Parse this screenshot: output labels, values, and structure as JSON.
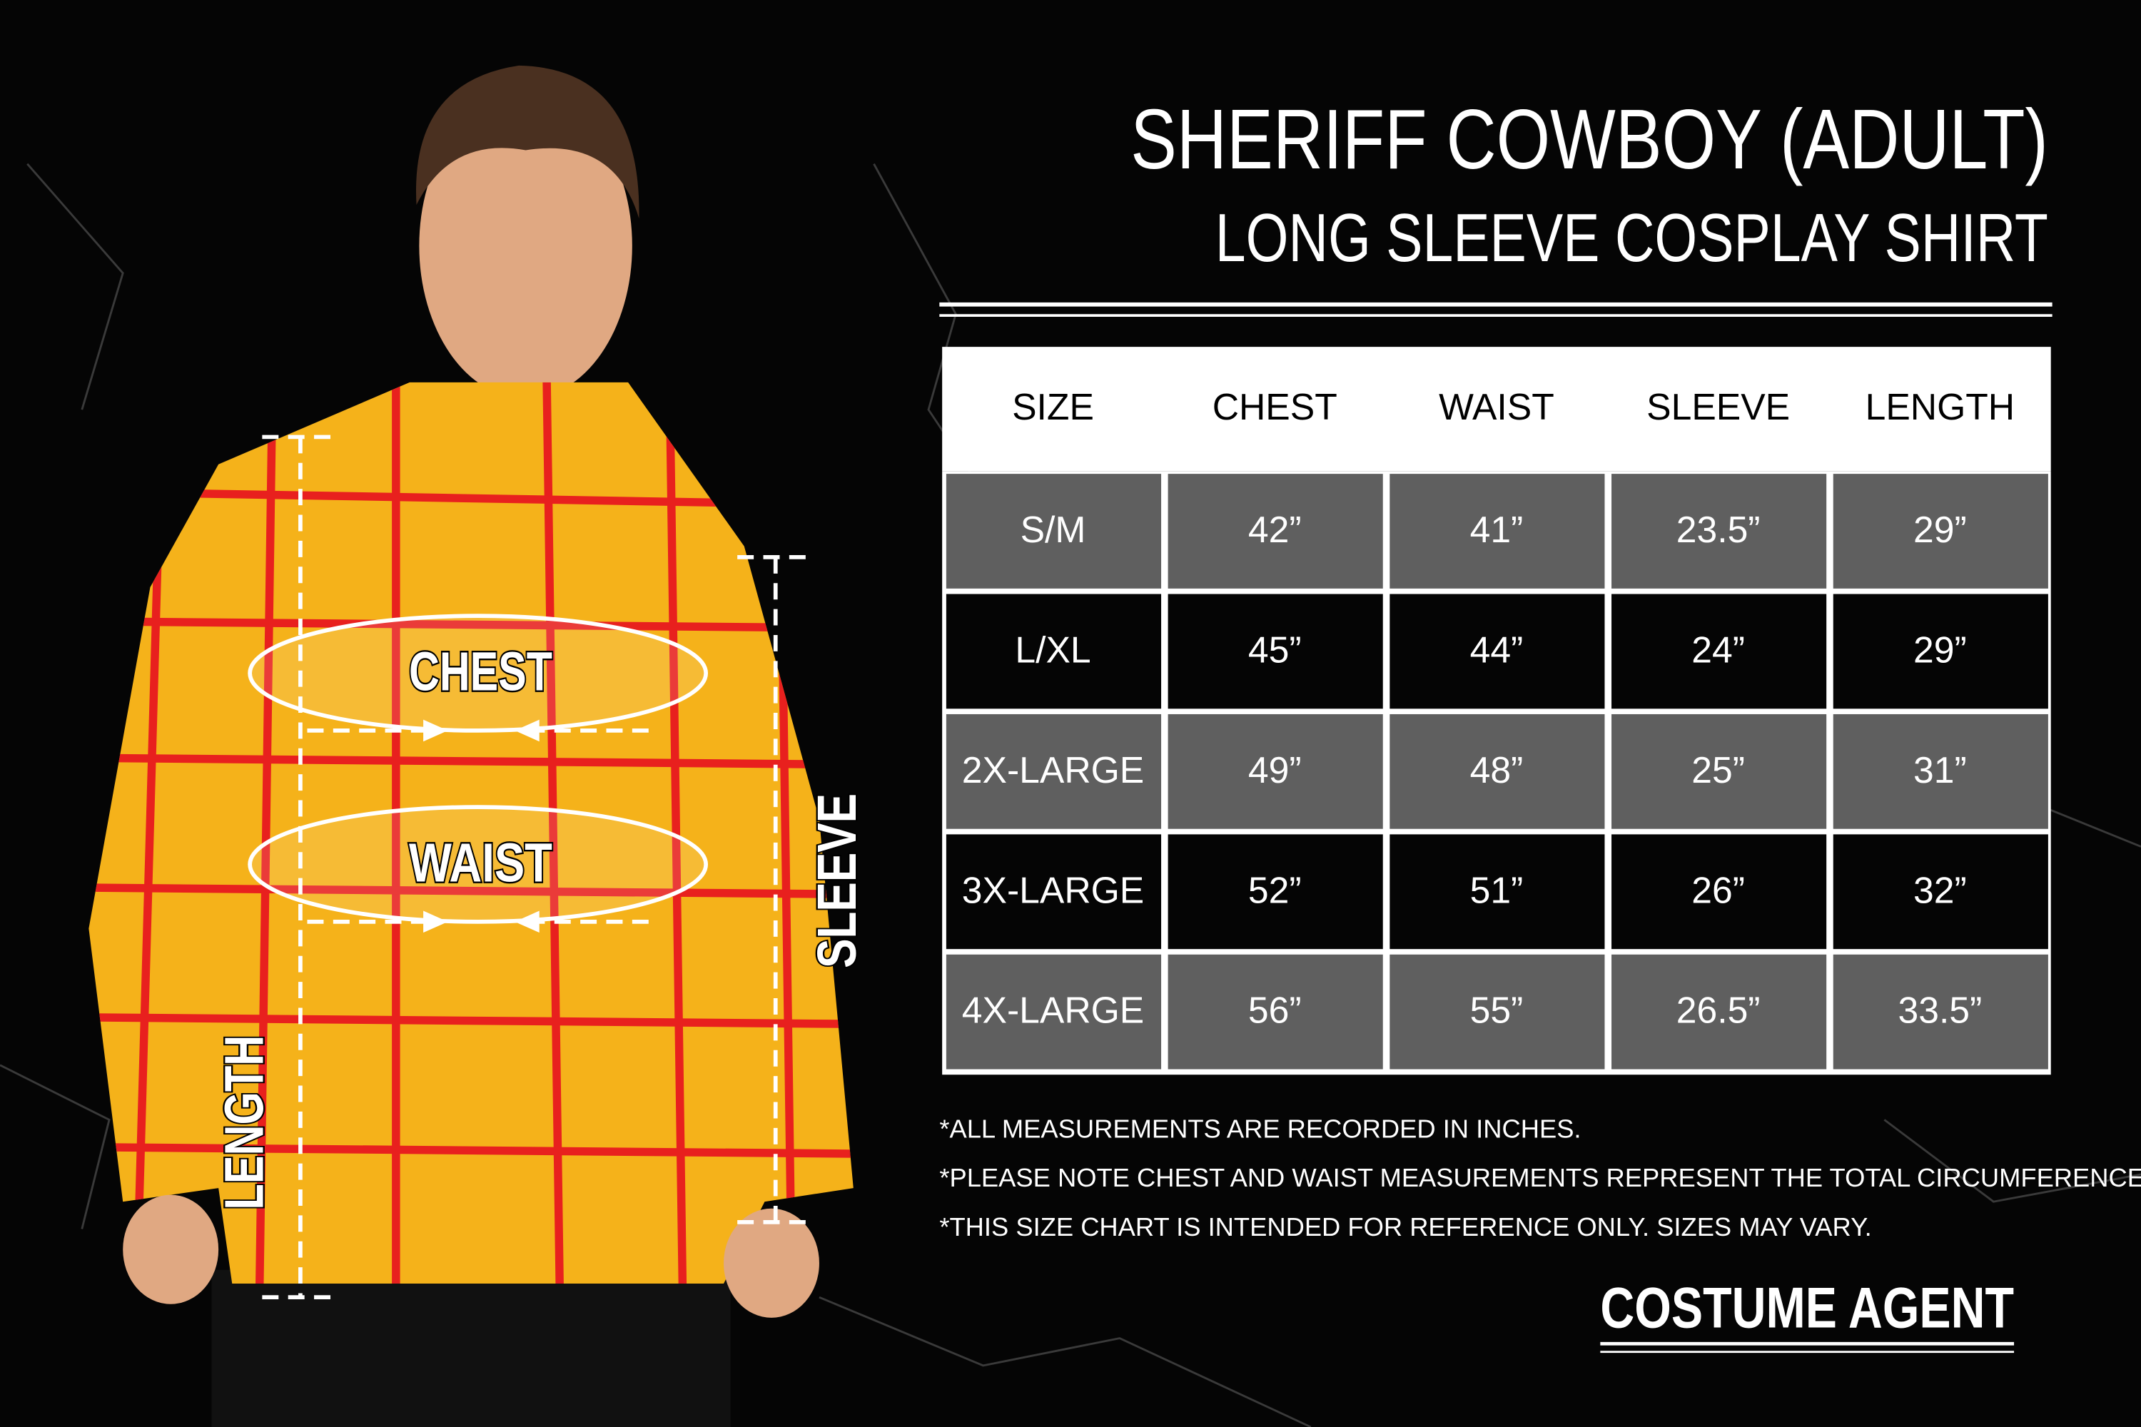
{
  "header": {
    "title": "SHERIFF COWBOY (ADULT)",
    "subtitle": "LONG SLEEVE COSPLAY SHIRT"
  },
  "figure": {
    "chest": "CHEST",
    "waist": "WAIST",
    "length": "LENGTH",
    "sleeve": "SLEEVE"
  },
  "table": {
    "columns": [
      "SIZE",
      "CHEST",
      "WAIST",
      "SLEEVE",
      "LENGTH"
    ],
    "rows": [
      [
        "S/M",
        "42”",
        "41”",
        "23.5”",
        "29”"
      ],
      [
        "L/XL",
        "45”",
        "44”",
        "24”",
        "29”"
      ],
      [
        "2X-LARGE",
        "49”",
        "48”",
        "25”",
        "31”"
      ],
      [
        "3X-LARGE",
        "52”",
        "51”",
        "26”",
        "32”"
      ],
      [
        "4X-LARGE",
        "56”",
        "55”",
        "26.5”",
        "33.5”"
      ]
    ]
  },
  "notes": [
    "*ALL MEASUREMENTS ARE RECORDED IN INCHES.",
    "*PLEASE NOTE CHEST AND WAIST MEASUREMENTS REPRESENT THE TOTAL CIRCUMFERENCE.",
    "*THIS SIZE CHART IS INTENDED FOR REFERENCE ONLY. SIZES MAY VARY."
  ],
  "brand": "COSTUME AGENT"
}
